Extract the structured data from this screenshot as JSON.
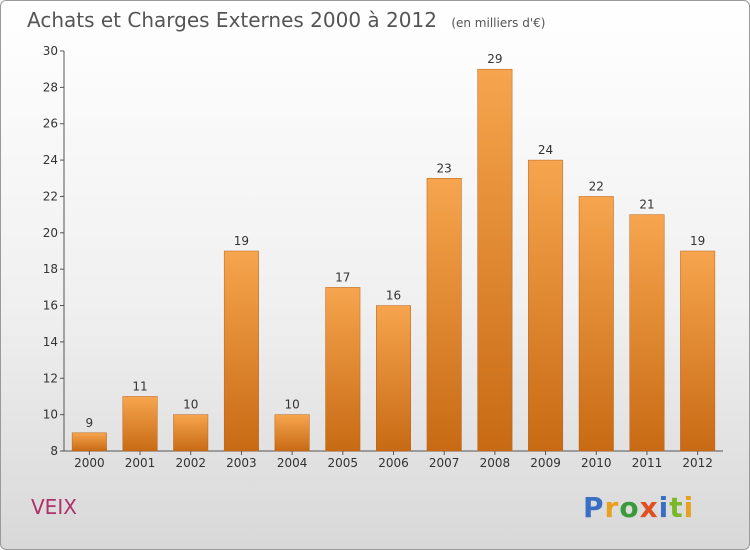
{
  "header": {
    "title": "Achats et Charges Externes 2000 à 2012",
    "subtitle": "(en milliers d'€)"
  },
  "footer": {
    "place": "VEIX",
    "brand_letters": [
      {
        "ch": "P",
        "color": "#3a6fc4"
      },
      {
        "ch": "r",
        "color": "#e8a020"
      },
      {
        "ch": "o",
        "color": "#3a9a3a"
      },
      {
        "ch": "x",
        "color": "#e05020"
      },
      {
        "ch": "i",
        "color": "#3a6fc4"
      },
      {
        "ch": "t",
        "color": "#7ab82a"
      },
      {
        "ch": "i",
        "color": "#e8a020"
      }
    ]
  },
  "chart_data": {
    "type": "bar",
    "categories": [
      "2000",
      "2001",
      "2002",
      "2003",
      "2004",
      "2005",
      "2006",
      "2007",
      "2008",
      "2009",
      "2010",
      "2011",
      "2012"
    ],
    "values": [
      9,
      11,
      10,
      19,
      10,
      17,
      16,
      23,
      29,
      24,
      22,
      21,
      19
    ],
    "ylim": [
      8,
      30
    ],
    "yticks": [
      8,
      10,
      12,
      14,
      16,
      18,
      20,
      22,
      24,
      26,
      28,
      30
    ],
    "grid": false,
    "bar_color_top": "#f6a54e",
    "bar_color_bottom": "#c86a14"
  }
}
